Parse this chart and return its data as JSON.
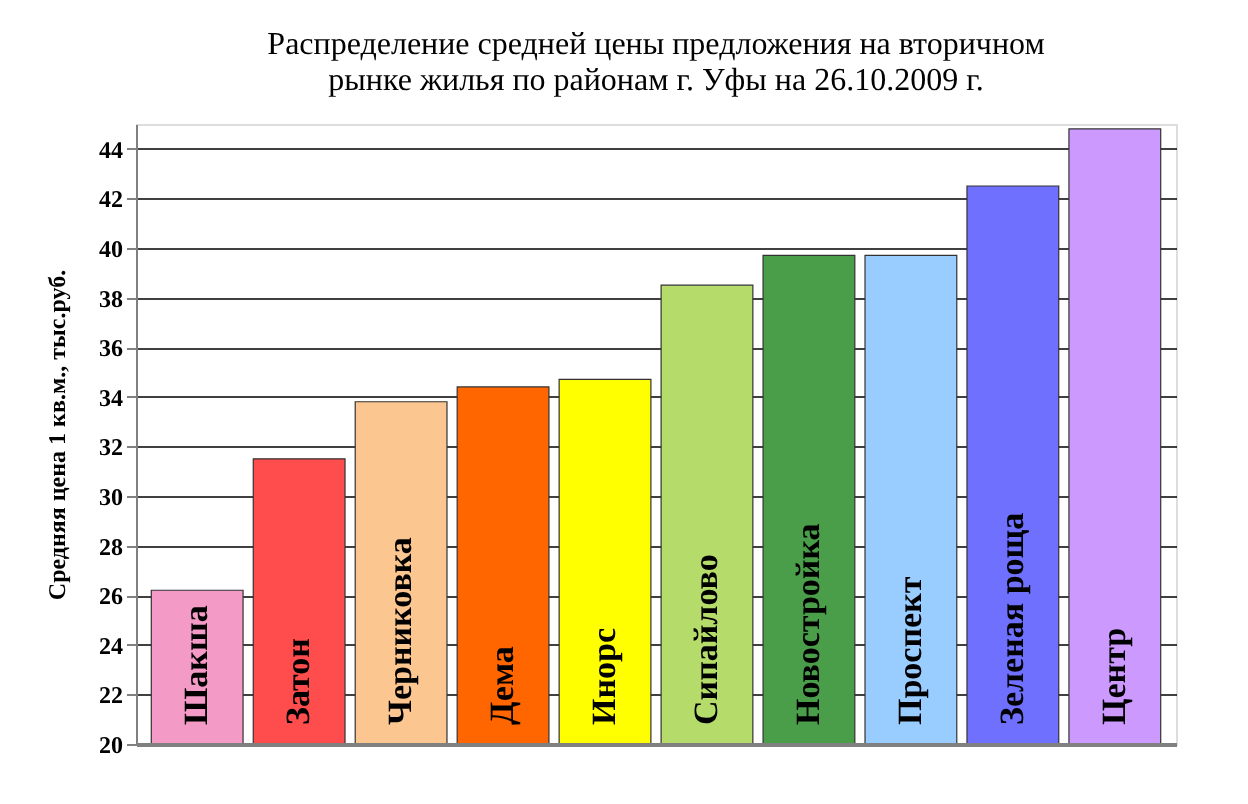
{
  "chart_data": {
    "type": "bar",
    "title": "Распределение средней цены предложения на вторичном\nрынке жилья по районам г. Уфы на 26.10.2009 г.",
    "ylabel": "Средняя цена 1 кв.м., тыс.руб.",
    "categories": [
      "Шакша",
      "Затон",
      "Черниковка",
      "Дема",
      "Инорс",
      "Сипайлово",
      "Новостройка",
      "Проспект",
      "Зеленая роща",
      "Центр"
    ],
    "values": [
      26.2,
      31.5,
      33.8,
      34.4,
      34.7,
      38.5,
      39.7,
      39.7,
      42.5,
      44.8
    ],
    "colors": [
      "#f39ac6",
      "#ff4d4d",
      "#fcc690",
      "#ff6600",
      "#ffff00",
      "#b5db6b",
      "#4a9e4a",
      "#99ccff",
      "#7070ff",
      "#cc99ff"
    ],
    "ylim": [
      20,
      45
    ],
    "yticks": [
      20,
      22,
      24,
      26,
      28,
      30,
      32,
      34,
      36,
      38,
      40,
      42,
      44
    ],
    "grid": "y"
  }
}
